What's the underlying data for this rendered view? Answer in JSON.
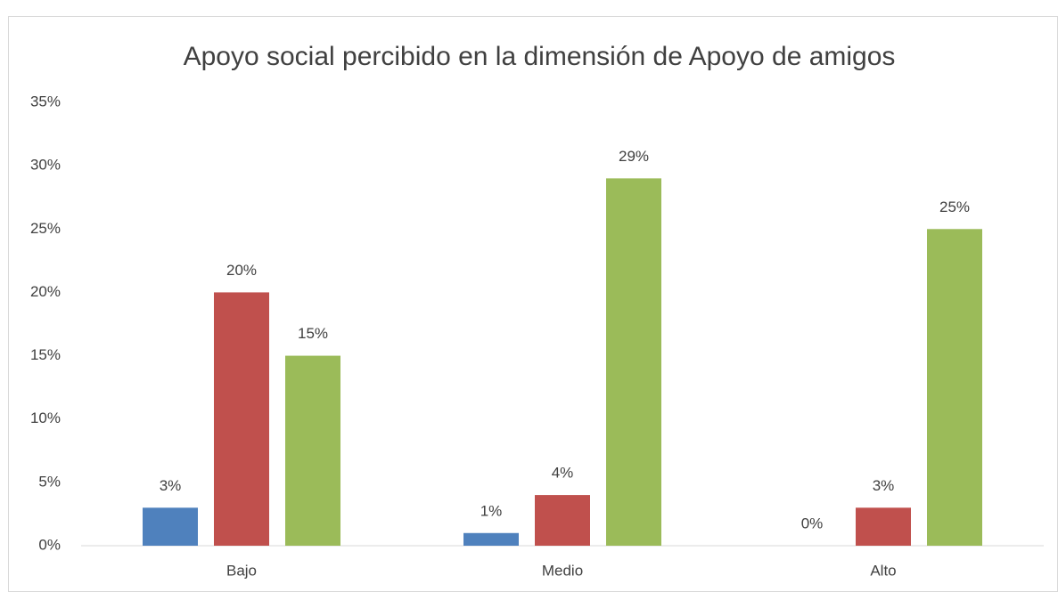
{
  "chart_data": {
    "type": "bar",
    "title": "Apoyo social percibido en la dimensión de Apoyo de amigos",
    "categories": [
      "Bajo",
      "Medio",
      "Alto"
    ],
    "series": [
      {
        "color": "#4f81bd",
        "values": [
          3,
          1,
          0
        ],
        "value_labels": [
          "3%",
          "1%",
          "0%"
        ]
      },
      {
        "color": "#c0504d",
        "values": [
          20,
          4,
          3
        ],
        "value_labels": [
          "20%",
          "4%",
          "3%"
        ]
      },
      {
        "color": "#9bbb59",
        "values": [
          15,
          29,
          25
        ],
        "value_labels": [
          "15%",
          "29%",
          "25%"
        ]
      }
    ],
    "ylim": [
      0,
      35
    ],
    "yticks": [
      {
        "value": 0,
        "label": "0%"
      },
      {
        "value": 5,
        "label": "5%"
      },
      {
        "value": 10,
        "label": "10%"
      },
      {
        "value": 15,
        "label": "15%"
      },
      {
        "value": 20,
        "label": "20%"
      },
      {
        "value": 25,
        "label": "25%"
      },
      {
        "value": 30,
        "label": "30%"
      },
      {
        "value": 35,
        "label": "35%"
      }
    ],
    "grid": false
  }
}
